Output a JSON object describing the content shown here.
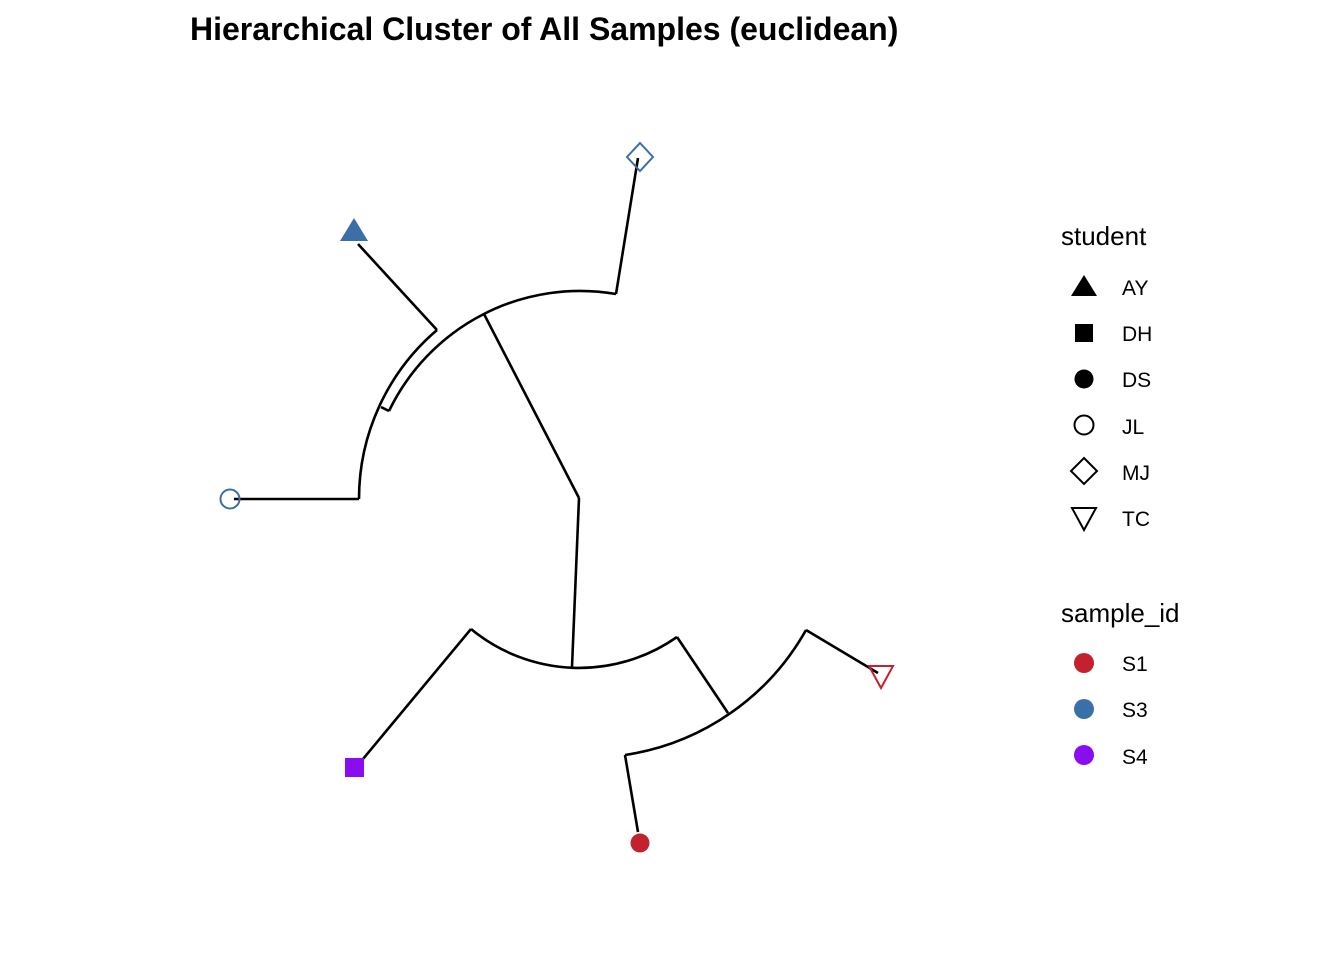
{
  "title": "Hierarchical Cluster of All Samples (euclidean)",
  "legend": {
    "student": {
      "title": "student",
      "items": [
        {
          "label": "AY",
          "shape": "triangle-filled-icon"
        },
        {
          "label": "DH",
          "shape": "square-filled-icon"
        },
        {
          "label": "DS",
          "shape": "circle-filled-icon"
        },
        {
          "label": "JL",
          "shape": "circle-open-icon"
        },
        {
          "label": "MJ",
          "shape": "diamond-open-icon"
        },
        {
          "label": "TC",
          "shape": "triangle-down-open-icon"
        }
      ]
    },
    "sample_id": {
      "title": "sample_id",
      "items": [
        {
          "label": "S1",
          "color": "#C4212F"
        },
        {
          "label": "S3",
          "color": "#3A6FA8"
        },
        {
          "label": "S4",
          "color": "#8A0DF0"
        }
      ]
    }
  },
  "leaves": [
    {
      "student": "MJ",
      "sample_id": "S3",
      "shape": "diamond-open-icon",
      "color": "#3A6FA8"
    },
    {
      "student": "AY",
      "sample_id": "S3",
      "shape": "triangle-filled-icon",
      "color": "#3A6FA8"
    },
    {
      "student": "JL",
      "sample_id": "S3",
      "shape": "circle-open-icon",
      "color": "#3A6FA8"
    },
    {
      "student": "DH",
      "sample_id": "S4",
      "shape": "square-filled-icon",
      "color": "#8A0DF0"
    },
    {
      "student": "DS",
      "sample_id": "S1",
      "shape": "circle-filled-icon",
      "color": "#C4212F"
    },
    {
      "student": "TC",
      "sample_id": "S1",
      "shape": "triangle-down-open-icon",
      "color": "#C4212F"
    }
  ]
}
